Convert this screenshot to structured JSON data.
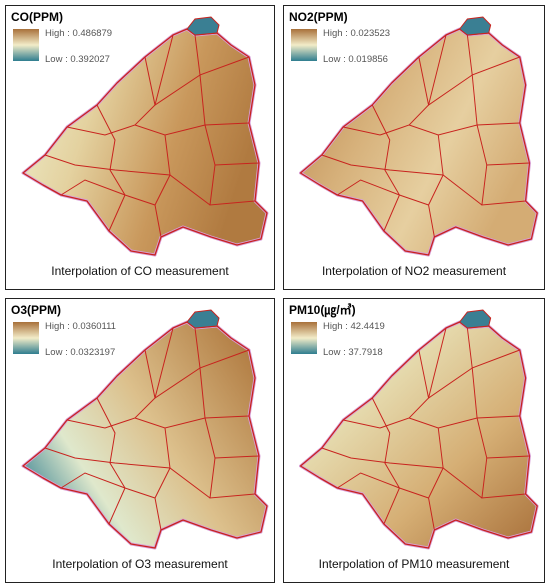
{
  "panels": [
    {
      "title": "CO(PPM)",
      "high": "High : 0.486879",
      "low": "Low : 0.392027",
      "caption": "Interpolation of CO measurement"
    },
    {
      "title": "NO2(PPM)",
      "high": "High : 0.023523",
      "low": "Low : 0.019856",
      "caption": "Interpolation of NO2 measurement"
    },
    {
      "title": "O3(PPM)",
      "high": "High : 0.0360111",
      "low": "Low : 0.0323197",
      "caption": "Interpolation of O3 measurement"
    },
    {
      "title": "PM10(㎍/㎥)",
      "high": "High : 42.4419",
      "low": "Low : 37.7918",
      "caption": "Interpolation of PM10 measurement"
    }
  ]
}
